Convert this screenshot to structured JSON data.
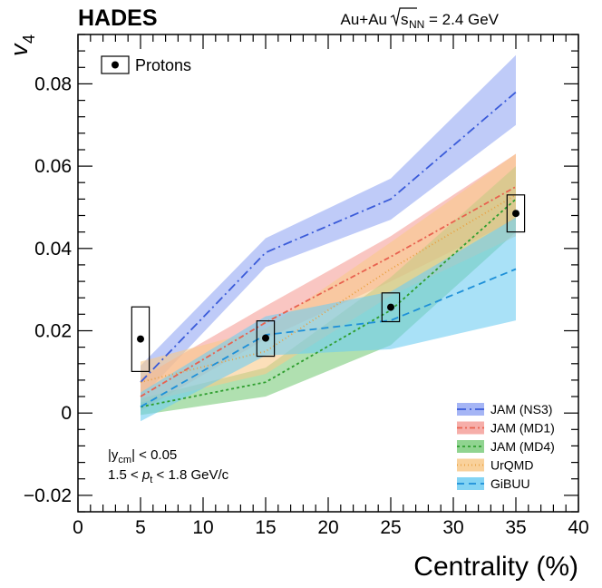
{
  "header": {
    "experiment": "HADES",
    "system_prefix": "Au+Au",
    "sqrt_s_label": "s",
    "sqrt_s_sub": "NN",
    "energy": "= 2.4 GeV"
  },
  "chart_data": {
    "type": "line",
    "xlabel": "Centrality (%)",
    "ylabel": "v",
    "ylabel_sub": "4",
    "xlim": [
      0,
      40
    ],
    "ylim": [
      -0.024,
      0.092
    ],
    "x_ticks": [
      0,
      5,
      10,
      15,
      20,
      25,
      30,
      35,
      40
    ],
    "x_tick_labels": [
      "0",
      "5",
      "10",
      "15",
      "20",
      "25",
      "30",
      "35",
      "40"
    ],
    "y_ticks": [
      -0.02,
      0,
      0.02,
      0.04,
      0.06,
      0.08
    ],
    "y_tick_labels": [
      "−0.02",
      "0",
      "0.02",
      "0.04",
      "0.06",
      "0.08"
    ],
    "grid": false,
    "data_series": {
      "name": "Protons",
      "x": [
        5,
        15,
        25,
        35
      ],
      "y": [
        0.018,
        0.0182,
        0.0257,
        0.0485
      ],
      "sys_box_half_width": 0.7,
      "sys_box_low": [
        0.0101,
        0.0138,
        0.0222,
        0.044
      ],
      "sys_box_high": [
        0.0258,
        0.0224,
        0.0292,
        0.053
      ],
      "color": "#000000"
    },
    "model_series": [
      {
        "name": "JAM (NS3)",
        "color": "#3a5bd9",
        "band_color": "#95a8f3",
        "dash": "10,4,2,4",
        "x": [
          5,
          15,
          25,
          35
        ],
        "y": [
          0.0075,
          0.039,
          0.052,
          0.078
        ],
        "y_low": [
          0.0035,
          0.0355,
          0.047,
          0.07
        ],
        "y_high": [
          0.0115,
          0.0425,
          0.057,
          0.087
        ]
      },
      {
        "name": "JAM (MD1)",
        "color": "#e8614f",
        "band_color": "#f5a09a",
        "dash": "6,3,2,3",
        "x": [
          5,
          15,
          25,
          35
        ],
        "y": [
          0.004,
          0.022,
          0.038,
          0.055
        ],
        "y_low": [
          0.0005,
          0.018,
          0.032,
          0.047
        ],
        "y_high": [
          0.0085,
          0.026,
          0.043,
          0.063
        ]
      },
      {
        "name": "JAM (MD4)",
        "color": "#2e9e2e",
        "band_color": "#7ccc7c",
        "dash": "3,3",
        "x": [
          5,
          15,
          25,
          35
        ],
        "y": [
          0.0015,
          0.0075,
          0.025,
          0.052
        ],
        "y_low": [
          -0.0005,
          0.004,
          0.0165,
          0.044
        ],
        "y_high": [
          0.0035,
          0.011,
          0.033,
          0.06
        ]
      },
      {
        "name": "UrQMD",
        "color": "#e8a040",
        "band_color": "#f8c98a",
        "dash": "1,3",
        "x": [
          5,
          15,
          25,
          35
        ],
        "y": [
          0.0075,
          0.015,
          0.035,
          0.053
        ],
        "y_low": [
          0.0025,
          0.0095,
          0.0285,
          0.043
        ],
        "y_high": [
          0.0125,
          0.0205,
          0.0415,
          0.063
        ]
      },
      {
        "name": "GiBUU",
        "color": "#1e90d8",
        "band_color": "#6fcdf2",
        "dash": "8,5",
        "x": [
          5,
          15,
          25,
          35
        ],
        "y": [
          0.0015,
          0.019,
          0.0225,
          0.035
        ],
        "y_low": [
          -0.002,
          0.014,
          0.0155,
          0.0225
        ],
        "y_high": [
          0.005,
          0.0235,
          0.0295,
          0.0475
        ]
      }
    ],
    "legend": {
      "placement": "bottom-right",
      "entries": [
        "JAM (NS3)",
        "JAM (MD1)",
        "JAM (MD4)",
        "UrQMD",
        "GiBUU"
      ],
      "data_entry": "Protons",
      "data_entry_placement": "top-left"
    },
    "annotations": {
      "rapidity_pre": "|y",
      "rapidity_sub": "cm",
      "rapidity_post": "| < 0.05",
      "pt_pre": "1.5 < ",
      "pt_var": "p",
      "pt_sub": "t",
      "pt_post": " < 1.8 GeV/c"
    }
  }
}
